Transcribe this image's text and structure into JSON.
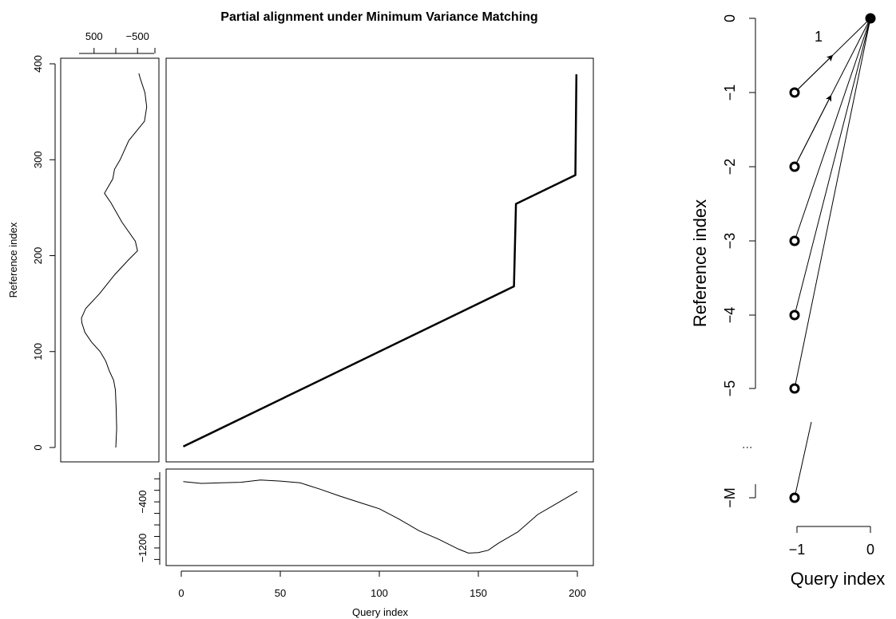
{
  "chart_data": [
    {
      "type": "line",
      "title": "Partial alignment under Minimum Variance Matching",
      "xlabel": "Query index",
      "ylabel": "Reference index",
      "xlim": [
        0,
        200
      ],
      "ylim": [
        0,
        400
      ],
      "x_ticks": [
        "0",
        "50",
        "100",
        "150",
        "200"
      ],
      "y_ticks": [
        "0",
        "100",
        "200",
        "300",
        "400"
      ],
      "series": [
        {
          "points": [
            [
              1,
              1
            ],
            [
              52,
              52
            ],
            [
              53,
              53
            ],
            [
              168,
              168
            ],
            [
              169,
              254
            ],
            [
              199,
              284
            ],
            [
              199.5,
              389
            ]
          ]
        }
      ]
    },
    {
      "type": "line",
      "orientation": "vertical",
      "xlim": [
        900,
        -900
      ],
      "x_ticks": [
        "500",
        "−500"
      ],
      "values_from_reference": [
        [
          0,
          0
        ],
        [
          20,
          -20
        ],
        [
          40,
          -10
        ],
        [
          60,
          10
        ],
        [
          70,
          50
        ],
        [
          80,
          150
        ],
        [
          90,
          230
        ],
        [
          100,
          360
        ],
        [
          110,
          560
        ],
        [
          120,
          710
        ],
        [
          130,
          780
        ],
        [
          135,
          790
        ],
        [
          145,
          690
        ],
        [
          160,
          380
        ],
        [
          180,
          30
        ],
        [
          195,
          -280
        ],
        [
          205,
          -500
        ],
        [
          215,
          -450
        ],
        [
          235,
          -140
        ],
        [
          255,
          110
        ],
        [
          265,
          260
        ],
        [
          280,
          70
        ],
        [
          290,
          30
        ],
        [
          300,
          -100
        ],
        [
          320,
          -300
        ],
        [
          340,
          -660
        ],
        [
          355,
          -710
        ],
        [
          370,
          -670
        ],
        [
          385,
          -560
        ],
        [
          390,
          -530
        ]
      ]
    },
    {
      "type": "line",
      "ylim": [
        -1450,
        100
      ],
      "y_ticks": [
        "−400",
        "−1200"
      ],
      "x": [
        1,
        10,
        20,
        30,
        40,
        50,
        60,
        70,
        80,
        90,
        100,
        110,
        120,
        130,
        140,
        145,
        150,
        155,
        160,
        170,
        180,
        190,
        200
      ],
      "values": [
        -50,
        -80,
        -70,
        -60,
        -20,
        -40,
        -70,
        -180,
        -300,
        -410,
        -520,
        -700,
        -900,
        -1050,
        -1220,
        -1290,
        -1280,
        -1240,
        -1120,
        -920,
        -620,
        -420,
        -220
      ]
    },
    {
      "type": "scatter",
      "xlabel": "Query index",
      "ylabel": "Reference index",
      "x_ticks": [
        "−1",
        "0"
      ],
      "y_ticks": [
        "0",
        "−1",
        "−2",
        "−3",
        "−4",
        "−5",
        "−M"
      ],
      "annotations": [
        "1",
        "⋮"
      ],
      "points": [
        {
          "x": 0,
          "y": 0,
          "filled": true
        },
        {
          "x": -1,
          "y": -1,
          "filled": false
        },
        {
          "x": -1,
          "y": -2,
          "filled": false
        },
        {
          "x": -1,
          "y": -3,
          "filled": false
        },
        {
          "x": -1,
          "y": -4,
          "filled": false
        },
        {
          "x": -1,
          "y": -5,
          "filled": false
        },
        {
          "x": -1,
          "y": "-M",
          "filled": false
        }
      ]
    }
  ]
}
